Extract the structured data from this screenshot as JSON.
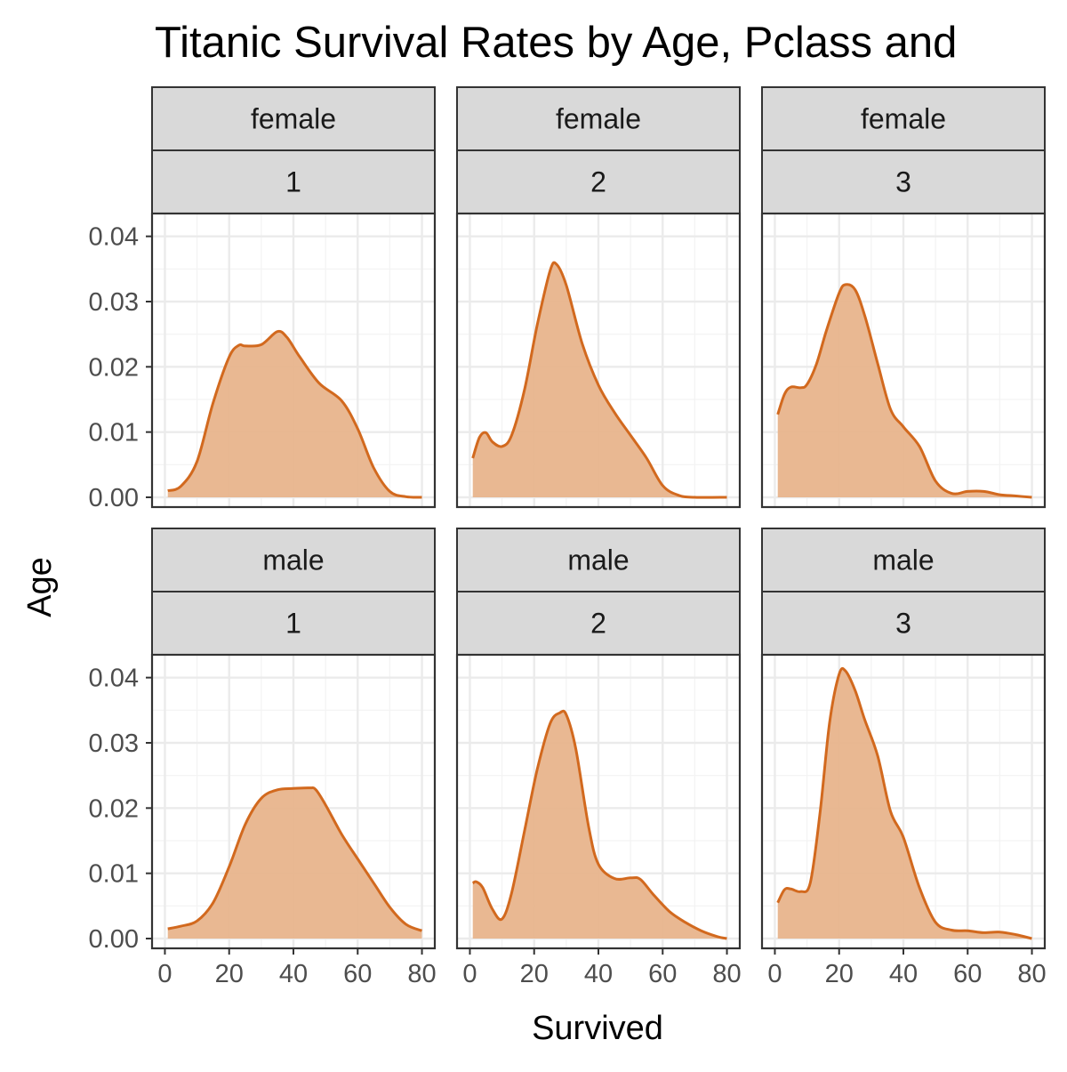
{
  "chart_data": {
    "type": "area",
    "title": "Titanic Survival Rates by Age, Pclass and",
    "xlabel": "Survived",
    "ylabel": "Age",
    "xlim": [
      -4,
      84
    ],
    "ylim": [
      -0.0015,
      0.0435
    ],
    "xticks": [
      "0",
      "20",
      "40",
      "60",
      "80"
    ],
    "xtick_values": [
      0,
      20,
      40,
      60,
      80
    ],
    "yticks": [
      "0.00",
      "0.01",
      "0.02",
      "0.03",
      "0.04"
    ],
    "ytick_values": [
      0,
      0.01,
      0.02,
      0.03,
      0.04
    ],
    "grid": true,
    "colors": {
      "fill": "#E8B48C",
      "line": "#D2691E",
      "strip_bg": "#D9D9D9",
      "border": "#333333",
      "grid": "#EBEBEB"
    },
    "facets": [
      {
        "sex": "female",
        "pclass": "1",
        "x": [
          0.9,
          5,
          10,
          15,
          20,
          23,
          25,
          30,
          35,
          38,
          42,
          48,
          55,
          60,
          65,
          70,
          75,
          80
        ],
        "y": [
          0.001,
          0.0017,
          0.0055,
          0.0145,
          0.0215,
          0.0233,
          0.0232,
          0.0234,
          0.0254,
          0.0245,
          0.0215,
          0.0175,
          0.0148,
          0.0105,
          0.0045,
          0.0009,
          0.0001,
          0.0
        ]
      },
      {
        "sex": "female",
        "pclass": "2",
        "x": [
          0.9,
          3,
          5,
          7,
          10,
          13,
          17,
          21,
          25,
          27,
          30,
          35,
          40,
          45,
          50,
          55,
          60,
          65,
          70,
          80
        ],
        "y": [
          0.006,
          0.0092,
          0.0099,
          0.0085,
          0.0078,
          0.0095,
          0.0165,
          0.0265,
          0.0348,
          0.0357,
          0.0325,
          0.0235,
          0.0172,
          0.013,
          0.0095,
          0.006,
          0.0018,
          0.0003,
          0.0,
          0.0
        ]
      },
      {
        "sex": "female",
        "pclass": "3",
        "x": [
          0.9,
          3,
          5,
          8,
          10,
          13,
          16,
          20,
          22,
          25,
          28,
          32,
          36,
          40,
          45,
          50,
          55,
          60,
          65,
          70,
          75,
          80
        ],
        "y": [
          0.0127,
          0.0158,
          0.0169,
          0.0168,
          0.0173,
          0.0205,
          0.0255,
          0.0313,
          0.0326,
          0.0318,
          0.0278,
          0.0205,
          0.0135,
          0.0108,
          0.0078,
          0.0025,
          0.0006,
          0.0009,
          0.0009,
          0.0004,
          0.0002,
          0.0
        ]
      },
      {
        "sex": "male",
        "pclass": "1",
        "x": [
          0.9,
          5,
          10,
          15,
          20,
          25,
          30,
          35,
          40,
          45,
          47,
          50,
          55,
          60,
          65,
          70,
          75,
          80
        ],
        "y": [
          0.0015,
          0.0019,
          0.0027,
          0.0055,
          0.011,
          0.0175,
          0.0215,
          0.0228,
          0.023,
          0.0231,
          0.0228,
          0.0205,
          0.016,
          0.0122,
          0.0085,
          0.0048,
          0.0022,
          0.0012
        ]
      },
      {
        "sex": "male",
        "pclass": "2",
        "x": [
          0.9,
          2,
          4,
          7,
          10,
          13,
          17,
          21,
          25,
          28,
          30,
          33,
          37,
          40,
          45,
          50,
          53,
          57,
          62,
          67,
          72,
          77,
          80
        ],
        "y": [
          0.0085,
          0.0087,
          0.0078,
          0.0045,
          0.003,
          0.007,
          0.0165,
          0.026,
          0.033,
          0.0346,
          0.0343,
          0.029,
          0.017,
          0.0114,
          0.0092,
          0.0093,
          0.0091,
          0.0068,
          0.0042,
          0.0025,
          0.0012,
          0.0003,
          0.0
        ]
      },
      {
        "sex": "male",
        "pclass": "3",
        "x": [
          0.9,
          3,
          5,
          8,
          11,
          14,
          17,
          20,
          22,
          25,
          28,
          32,
          36,
          40,
          45,
          50,
          55,
          60,
          65,
          70,
          75,
          80
        ],
        "y": [
          0.0055,
          0.0075,
          0.0076,
          0.0072,
          0.0085,
          0.019,
          0.033,
          0.0405,
          0.041,
          0.038,
          0.0335,
          0.028,
          0.0195,
          0.0155,
          0.0078,
          0.0025,
          0.0013,
          0.0012,
          0.0009,
          0.001,
          0.0006,
          0.0
        ]
      }
    ]
  }
}
